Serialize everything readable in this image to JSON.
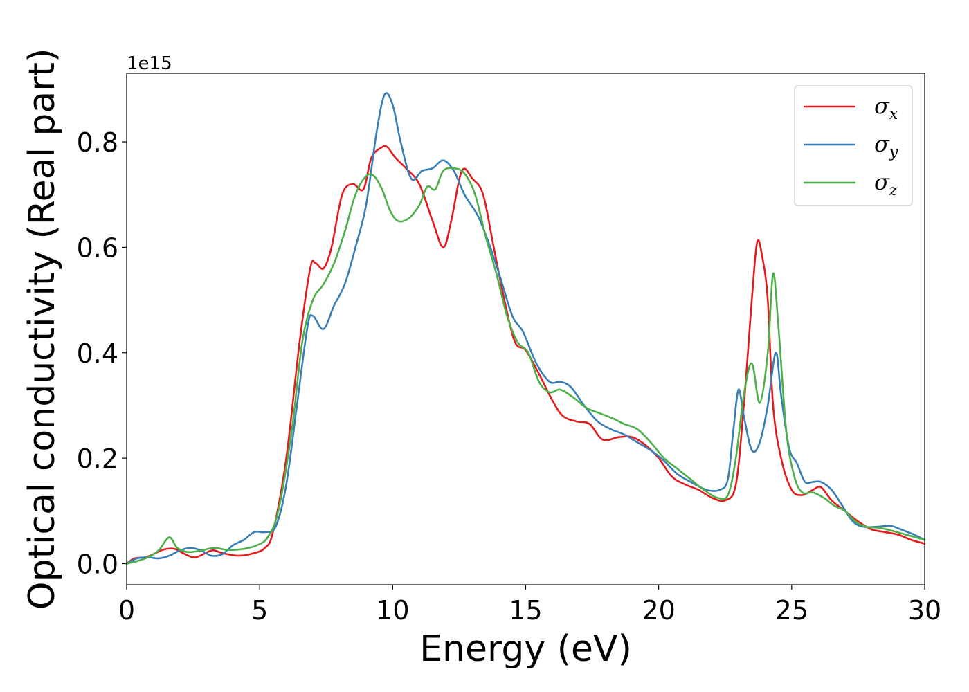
{
  "chart_data": {
    "type": "line",
    "xlabel": "Energy (eV)",
    "ylabel": "Optical conductivity (Real part)",
    "y_offset_text": "1e15",
    "xlim": [
      0,
      30
    ],
    "ylim": [
      -0.04,
      0.93
    ],
    "x_ticks": [
      0,
      5,
      10,
      15,
      20,
      25,
      30
    ],
    "x_tick_labels": [
      "0",
      "5",
      "10",
      "15",
      "20",
      "25",
      "30"
    ],
    "y_ticks": [
      0.0,
      0.2,
      0.4,
      0.6,
      0.8
    ],
    "y_tick_labels": [
      "0.0",
      "0.2",
      "0.4",
      "0.6",
      "0.8"
    ],
    "grid": false,
    "legend_position": "top-right",
    "series": [
      {
        "name": "σx",
        "symbol": "σ",
        "subscript": "x",
        "color": "#e41a1c",
        "points": [
          [
            0,
            0
          ],
          [
            0.3,
            0.01
          ],
          [
            0.7,
            0.012
          ],
          [
            1,
            0.018
          ],
          [
            1.4,
            0.027
          ],
          [
            1.8,
            0.028
          ],
          [
            2.2,
            0.018
          ],
          [
            2.6,
            0.012
          ],
          [
            3.2,
            0.025
          ],
          [
            3.6,
            0.02
          ],
          [
            4.2,
            0.015
          ],
          [
            4.8,
            0.02
          ],
          [
            5.2,
            0.03
          ],
          [
            5.5,
            0.06
          ],
          [
            6,
            0.2
          ],
          [
            6.5,
            0.42
          ],
          [
            6.9,
            0.56
          ],
          [
            7.1,
            0.57
          ],
          [
            7.4,
            0.56
          ],
          [
            7.7,
            0.6
          ],
          [
            8.1,
            0.7
          ],
          [
            8.5,
            0.72
          ],
          [
            8.9,
            0.71
          ],
          [
            9.2,
            0.77
          ],
          [
            9.6,
            0.79
          ],
          [
            9.8,
            0.79
          ],
          [
            10.1,
            0.77
          ],
          [
            10.5,
            0.75
          ],
          [
            11,
            0.72
          ],
          [
            11.5,
            0.65
          ],
          [
            11.9,
            0.6
          ],
          [
            12.2,
            0.65
          ],
          [
            12.6,
            0.745
          ],
          [
            13,
            0.73
          ],
          [
            13.4,
            0.7
          ],
          [
            13.8,
            0.6
          ],
          [
            14.2,
            0.5
          ],
          [
            14.6,
            0.42
          ],
          [
            15,
            0.405
          ],
          [
            15.5,
            0.36
          ],
          [
            16,
            0.31
          ],
          [
            16.4,
            0.28
          ],
          [
            16.9,
            0.27
          ],
          [
            17.4,
            0.265
          ],
          [
            17.9,
            0.235
          ],
          [
            18.5,
            0.24
          ],
          [
            19,
            0.24
          ],
          [
            19.5,
            0.225
          ],
          [
            20,
            0.2
          ],
          [
            20.5,
            0.165
          ],
          [
            21,
            0.15
          ],
          [
            21.5,
            0.14
          ],
          [
            22,
            0.125
          ],
          [
            22.5,
            0.12
          ],
          [
            22.9,
            0.15
          ],
          [
            23.2,
            0.3
          ],
          [
            23.5,
            0.5
          ],
          [
            23.7,
            0.61
          ],
          [
            23.9,
            0.58
          ],
          [
            24.1,
            0.5
          ],
          [
            24.3,
            0.3
          ],
          [
            24.6,
            0.2
          ],
          [
            25,
            0.14
          ],
          [
            25.4,
            0.13
          ],
          [
            25.8,
            0.14
          ],
          [
            26.1,
            0.145
          ],
          [
            26.5,
            0.12
          ],
          [
            27,
            0.1
          ],
          [
            27.5,
            0.08
          ],
          [
            28,
            0.065
          ],
          [
            28.5,
            0.06
          ],
          [
            29,
            0.055
          ],
          [
            29.5,
            0.045
          ],
          [
            30,
            0.038
          ]
        ]
      },
      {
        "name": "σy",
        "symbol": "σ",
        "subscript": "y",
        "color": "#377eb8",
        "points": [
          [
            0,
            0
          ],
          [
            0.4,
            0.01
          ],
          [
            0.8,
            0.012
          ],
          [
            1.2,
            0.01
          ],
          [
            1.6,
            0.015
          ],
          [
            2,
            0.025
          ],
          [
            2.4,
            0.03
          ],
          [
            2.8,
            0.025
          ],
          [
            3.2,
            0.015
          ],
          [
            3.6,
            0.018
          ],
          [
            4,
            0.035
          ],
          [
            4.4,
            0.045
          ],
          [
            4.8,
            0.06
          ],
          [
            5.2,
            0.06
          ],
          [
            5.6,
            0.07
          ],
          [
            6,
            0.15
          ],
          [
            6.4,
            0.3
          ],
          [
            6.8,
            0.45
          ],
          [
            7,
            0.47
          ],
          [
            7.4,
            0.445
          ],
          [
            7.8,
            0.49
          ],
          [
            8.2,
            0.53
          ],
          [
            8.6,
            0.6
          ],
          [
            9,
            0.68
          ],
          [
            9.4,
            0.82
          ],
          [
            9.7,
            0.89
          ],
          [
            10,
            0.87
          ],
          [
            10.3,
            0.8
          ],
          [
            10.7,
            0.73
          ],
          [
            11.1,
            0.745
          ],
          [
            11.5,
            0.75
          ],
          [
            11.9,
            0.765
          ],
          [
            12.3,
            0.745
          ],
          [
            12.7,
            0.7
          ],
          [
            13.2,
            0.66
          ],
          [
            13.6,
            0.61
          ],
          [
            14,
            0.55
          ],
          [
            14.5,
            0.47
          ],
          [
            14.9,
            0.44
          ],
          [
            15.4,
            0.38
          ],
          [
            15.9,
            0.345
          ],
          [
            16.3,
            0.345
          ],
          [
            16.7,
            0.335
          ],
          [
            17.2,
            0.3
          ],
          [
            17.7,
            0.27
          ],
          [
            18.2,
            0.255
          ],
          [
            18.7,
            0.245
          ],
          [
            19.2,
            0.23
          ],
          [
            19.7,
            0.215
          ],
          [
            20.2,
            0.195
          ],
          [
            20.7,
            0.17
          ],
          [
            21.2,
            0.155
          ],
          [
            21.8,
            0.14
          ],
          [
            22.3,
            0.14
          ],
          [
            22.6,
            0.16
          ],
          [
            22.8,
            0.25
          ],
          [
            23,
            0.33
          ],
          [
            23.2,
            0.28
          ],
          [
            23.5,
            0.215
          ],
          [
            23.8,
            0.23
          ],
          [
            24.1,
            0.3
          ],
          [
            24.4,
            0.4
          ],
          [
            24.6,
            0.32
          ],
          [
            24.9,
            0.22
          ],
          [
            25.2,
            0.19
          ],
          [
            25.5,
            0.155
          ],
          [
            25.8,
            0.155
          ],
          [
            26.1,
            0.155
          ],
          [
            26.5,
            0.14
          ],
          [
            26.9,
            0.11
          ],
          [
            27.3,
            0.08
          ],
          [
            27.7,
            0.07
          ],
          [
            28.2,
            0.07
          ],
          [
            28.7,
            0.072
          ],
          [
            29.1,
            0.065
          ],
          [
            29.6,
            0.055
          ],
          [
            30,
            0.045
          ]
        ]
      },
      {
        "name": "σz",
        "symbol": "σ",
        "subscript": "z",
        "color": "#4daf4a",
        "points": [
          [
            0,
            0
          ],
          [
            0.4,
            0.005
          ],
          [
            0.8,
            0.012
          ],
          [
            1.2,
            0.025
          ],
          [
            1.6,
            0.05
          ],
          [
            1.9,
            0.03
          ],
          [
            2.3,
            0.022
          ],
          [
            2.8,
            0.025
          ],
          [
            3.3,
            0.03
          ],
          [
            3.8,
            0.026
          ],
          [
            4.4,
            0.028
          ],
          [
            4.9,
            0.035
          ],
          [
            5.3,
            0.05
          ],
          [
            5.7,
            0.1
          ],
          [
            6.2,
            0.25
          ],
          [
            6.6,
            0.42
          ],
          [
            7,
            0.5
          ],
          [
            7.4,
            0.53
          ],
          [
            7.8,
            0.57
          ],
          [
            8.2,
            0.63
          ],
          [
            8.6,
            0.7
          ],
          [
            9,
            0.735
          ],
          [
            9.3,
            0.735
          ],
          [
            9.6,
            0.71
          ],
          [
            9.9,
            0.67
          ],
          [
            10.2,
            0.65
          ],
          [
            10.6,
            0.655
          ],
          [
            11,
            0.68
          ],
          [
            11.3,
            0.715
          ],
          [
            11.6,
            0.71
          ],
          [
            11.9,
            0.745
          ],
          [
            12.3,
            0.75
          ],
          [
            12.7,
            0.74
          ],
          [
            13.1,
            0.7
          ],
          [
            13.5,
            0.62
          ],
          [
            13.9,
            0.55
          ],
          [
            14.3,
            0.47
          ],
          [
            14.7,
            0.42
          ],
          [
            15.1,
            0.4
          ],
          [
            15.5,
            0.345
          ],
          [
            15.9,
            0.325
          ],
          [
            16.3,
            0.33
          ],
          [
            16.8,
            0.315
          ],
          [
            17.3,
            0.295
          ],
          [
            17.8,
            0.285
          ],
          [
            18.3,
            0.275
          ],
          [
            18.7,
            0.265
          ],
          [
            19.2,
            0.255
          ],
          [
            19.7,
            0.23
          ],
          [
            20.2,
            0.2
          ],
          [
            20.7,
            0.18
          ],
          [
            21.2,
            0.16
          ],
          [
            21.7,
            0.14
          ],
          [
            22.2,
            0.125
          ],
          [
            22.6,
            0.13
          ],
          [
            22.9,
            0.2
          ],
          [
            23.2,
            0.32
          ],
          [
            23.5,
            0.38
          ],
          [
            23.8,
            0.305
          ],
          [
            24.1,
            0.4
          ],
          [
            24.3,
            0.55
          ],
          [
            24.5,
            0.45
          ],
          [
            24.8,
            0.25
          ],
          [
            25.1,
            0.165
          ],
          [
            25.4,
            0.135
          ],
          [
            25.8,
            0.135
          ],
          [
            26.2,
            0.125
          ],
          [
            26.6,
            0.11
          ],
          [
            27,
            0.1
          ],
          [
            27.4,
            0.08
          ],
          [
            27.8,
            0.07
          ],
          [
            28.3,
            0.068
          ],
          [
            28.8,
            0.062
          ],
          [
            29.3,
            0.055
          ],
          [
            29.8,
            0.048
          ],
          [
            30,
            0.045
          ]
        ]
      }
    ]
  }
}
